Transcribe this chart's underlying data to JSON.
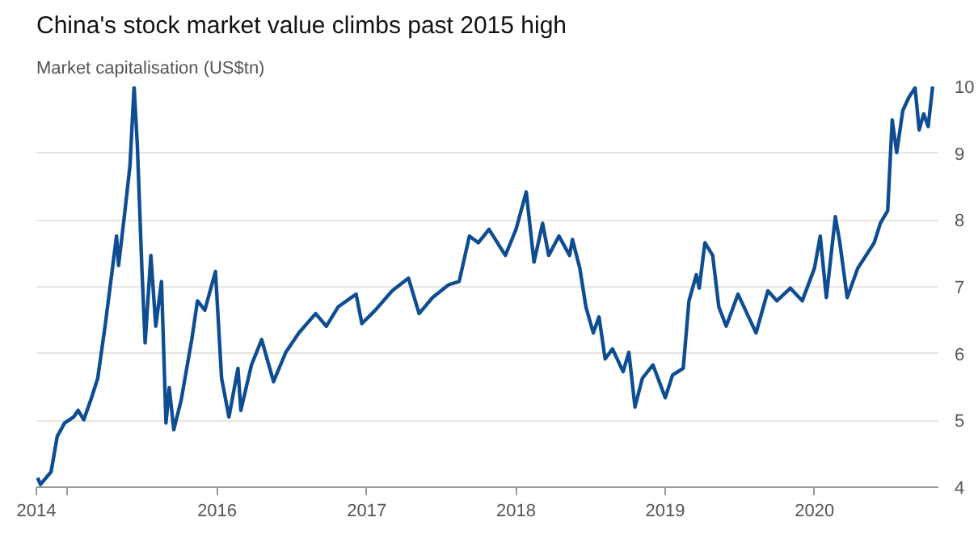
{
  "chart_data": {
    "type": "line",
    "title": "China's stock market value climbs past 2015 high",
    "subtitle": "Market capitalisation (US$tn)",
    "x": [
      "2014-10-19",
      "2014-10-26",
      "2014-11-21",
      "2014-12-06",
      "2014-12-24",
      "2015-01-15",
      "2015-01-26",
      "2015-02-09",
      "2015-02-28",
      "2015-03-15",
      "2015-04-02",
      "2015-04-16",
      "2015-04-30",
      "2015-05-05",
      "2015-05-19",
      "2015-06-02",
      "2015-06-12",
      "2015-06-20",
      "2015-07-01",
      "2015-07-09",
      "2015-07-23",
      "2015-08-04",
      "2015-08-18",
      "2015-08-29",
      "2015-09-06",
      "2015-09-17",
      "2015-10-05",
      "2015-10-31",
      "2015-11-14",
      "2015-12-02",
      "2015-12-28",
      "2016-01-12",
      "2016-01-30",
      "2016-02-21",
      "2016-02-28",
      "2016-03-25",
      "2016-04-19",
      "2016-05-18",
      "2016-06-17",
      "2016-07-19",
      "2016-08-29",
      "2016-09-24",
      "2016-10-23",
      "2016-12-06",
      "2016-12-20",
      "2017-01-22",
      "2017-03-04",
      "2017-04-13",
      "2017-05-09",
      "2017-06-11",
      "2017-07-20",
      "2017-08-15",
      "2017-09-09",
      "2017-10-01",
      "2017-10-27",
      "2017-12-06",
      "2018-01-01",
      "2018-01-26",
      "2018-02-14",
      "2018-03-07",
      "2018-03-22",
      "2018-04-16",
      "2018-05-12",
      "2018-05-19",
      "2018-06-06",
      "2018-06-21",
      "2018-07-09",
      "2018-07-23",
      "2018-08-07",
      "2018-08-25",
      "2018-09-20",
      "2018-10-04",
      "2018-10-19",
      "2018-11-06",
      "2018-12-02",
      "2019-01-01",
      "2019-01-19",
      "2019-02-14",
      "2019-02-28",
      "2019-03-18",
      "2019-03-25",
      "2019-04-08",
      "2019-04-27",
      "2019-05-12",
      "2019-05-30",
      "2019-06-28",
      "2019-07-20",
      "2019-08-11",
      "2019-09-09",
      "2019-10-01",
      "2019-11-03",
      "2019-12-02",
      "2020-01-01",
      "2020-01-15",
      "2020-01-30",
      "2020-02-21",
      "2020-03-03",
      "2020-03-21",
      "2020-04-16",
      "2020-05-26",
      "2020-06-10",
      "2020-06-28",
      "2020-07-09",
      "2020-07-20",
      "2020-08-04",
      "2020-08-19",
      "2020-09-03",
      "2020-09-13",
      "2020-09-24",
      "2020-10-05",
      "2020-10-16"
    ],
    "series": [
      {
        "color": "#0f4d92",
        "values": [
          4.14,
          4.04,
          4.23,
          4.76,
          4.96,
          5.05,
          5.15,
          5.01,
          5.34,
          5.63,
          6.41,
          7.08,
          7.76,
          7.32,
          8.05,
          8.82,
          10,
          9.11,
          7.28,
          6.16,
          7.47,
          6.41,
          7.08,
          4.96,
          5.49,
          4.86,
          5.3,
          6.21,
          6.79,
          6.65,
          7.23,
          5.63,
          5.05,
          5.78,
          5.15,
          5.83,
          6.21,
          5.58,
          6.02,
          6.31,
          6.6,
          6.41,
          6.7,
          6.89,
          6.45,
          6.65,
          6.94,
          7.13,
          6.6,
          6.84,
          7.03,
          7.08,
          7.76,
          7.66,
          7.86,
          7.47,
          7.86,
          8.42,
          7.37,
          7.95,
          7.47,
          7.76,
          7.47,
          7.71,
          7.28,
          6.7,
          6.31,
          6.55,
          5.92,
          6.07,
          5.73,
          6.02,
          5.2,
          5.63,
          5.83,
          5.34,
          5.68,
          5.78,
          6.79,
          7.18,
          6.98,
          7.66,
          7.47,
          6.7,
          6.41,
          6.89,
          6.6,
          6.31,
          6.94,
          6.79,
          6.98,
          6.79,
          7.28,
          7.76,
          6.84,
          8.05,
          7.66,
          6.84,
          7.28,
          7.66,
          7.95,
          8.14,
          9.5,
          9.01,
          9.64,
          9.84,
          9.98,
          9.35,
          9.59,
          9.4,
          10
        ]
      }
    ],
    "xlim": [
      "2014-10-16",
      "2020-10-30"
    ],
    "xticks": [
      {
        "value": "2014-10-16",
        "label": "2014"
      },
      {
        "value": "2015-01-01",
        "label": null
      },
      "2016",
      "2017",
      "2018",
      "2019",
      "2020"
    ],
    "ylim": [
      4,
      10
    ],
    "yticks": [
      4,
      5,
      6,
      7,
      8,
      9,
      10
    ],
    "grid": "y",
    "line_style": "solid",
    "marker": "none"
  }
}
